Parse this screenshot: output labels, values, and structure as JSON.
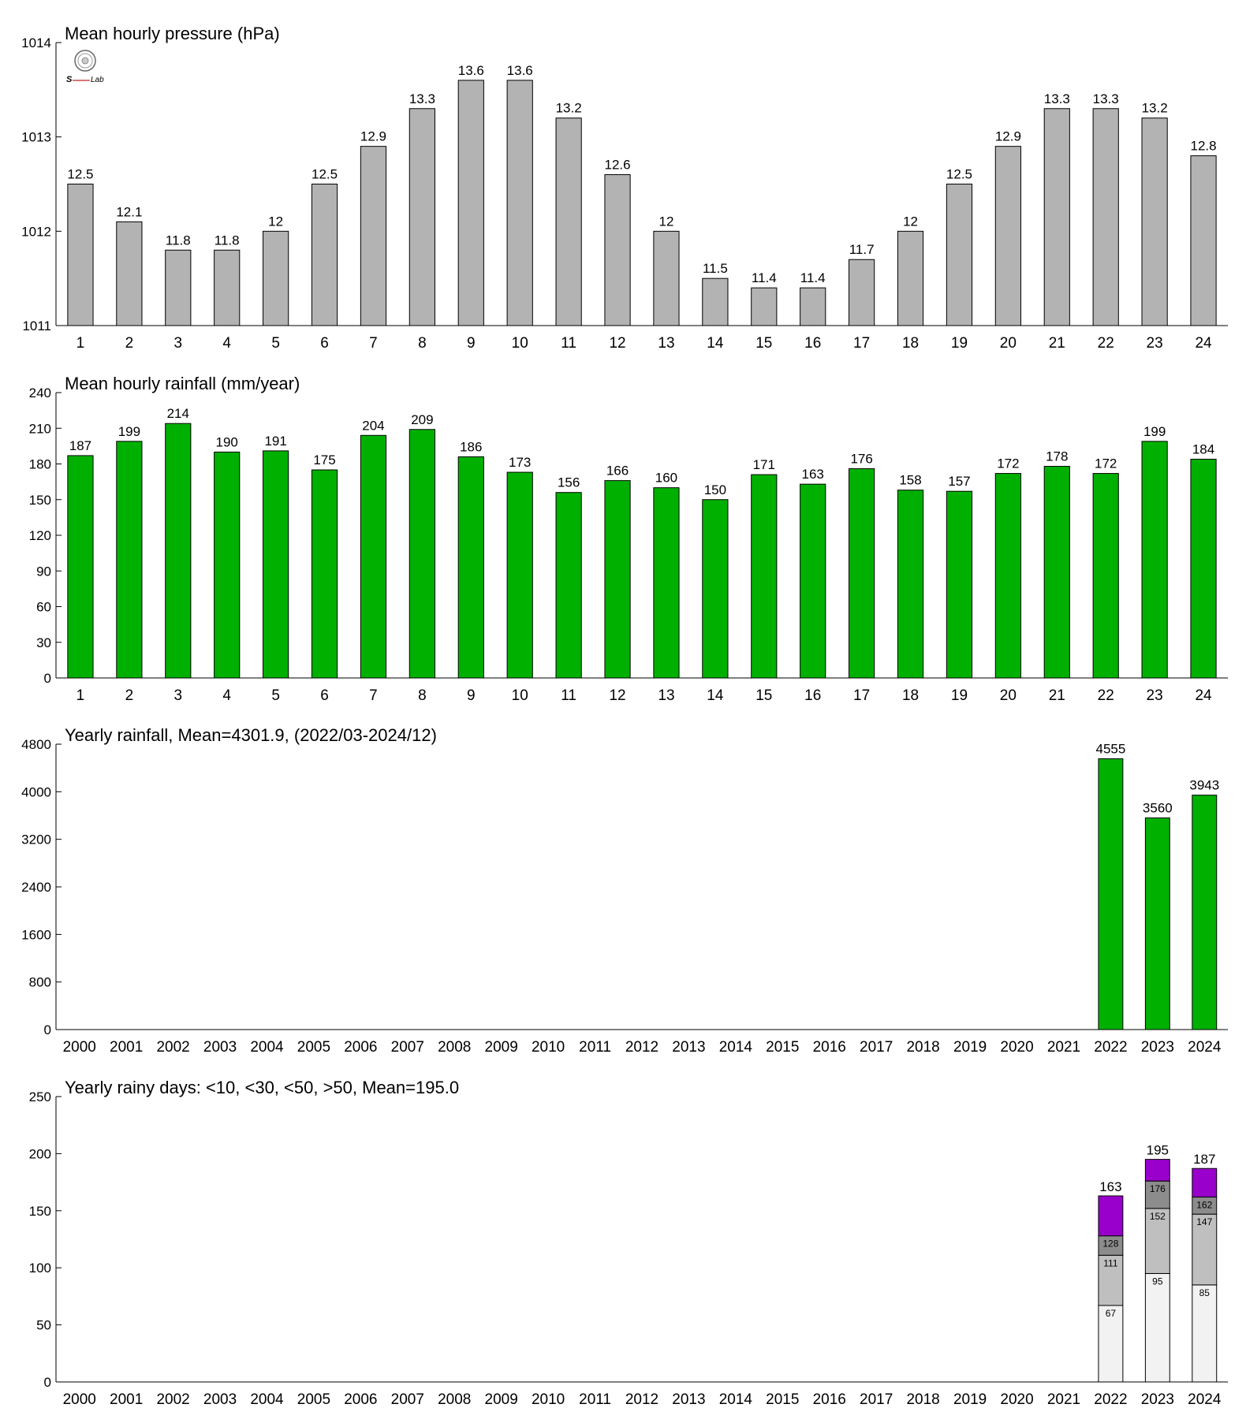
{
  "colors": {
    "pressure_bar": "#b3b3b3",
    "hourly_rain_bar": "#00b000",
    "yearly_rain_bar": "#00b000",
    "days_lt10": "#f2f2f2",
    "days_lt30": "#bfbfbf",
    "days_lt50": "#8c8c8c",
    "days_gt50": "#9900cc",
    "logo_blue": "#1f4fbf",
    "logo_green": "#2aa02a",
    "logo_red": "#cc2222"
  },
  "logo": {
    "icon": "lab-emblem-icon",
    "text_left": "S",
    "text_right": "Lab"
  },
  "chart_data": [
    {
      "type": "bar",
      "title": "Mean hourly pressure (hPa)",
      "categories": [
        "1",
        "2",
        "3",
        "4",
        "5",
        "6",
        "7",
        "8",
        "9",
        "10",
        "11",
        "12",
        "13",
        "14",
        "15",
        "16",
        "17",
        "18",
        "19",
        "20",
        "21",
        "22",
        "23",
        "24"
      ],
      "values": [
        1012.5,
        1012.1,
        1011.8,
        1011.8,
        1012.0,
        1012.5,
        1012.9,
        1013.3,
        1013.6,
        1013.6,
        1013.2,
        1012.6,
        1012.0,
        1011.5,
        1011.4,
        1011.4,
        1011.7,
        1012.0,
        1012.5,
        1012.9,
        1013.3,
        1013.3,
        1013.2,
        1012.8
      ],
      "labels": [
        "12.5",
        "12.1",
        "11.8",
        "11.8",
        "12",
        "12.5",
        "12.9",
        "13.3",
        "13.6",
        "13.6",
        "13.2",
        "12.6",
        "12",
        "11.5",
        "11.4",
        "11.4",
        "11.7",
        "12",
        "12.5",
        "12.9",
        "13.3",
        "13.3",
        "13.2",
        "12.8"
      ],
      "ylim": [
        1011,
        1014
      ],
      "yticks": [
        1011,
        1012,
        1013,
        1014
      ],
      "grid": false
    },
    {
      "type": "bar",
      "title": "Mean hourly rainfall (mm/year)",
      "categories": [
        "1",
        "2",
        "3",
        "4",
        "5",
        "6",
        "7",
        "8",
        "9",
        "10",
        "11",
        "12",
        "13",
        "14",
        "15",
        "16",
        "17",
        "18",
        "19",
        "20",
        "21",
        "22",
        "23",
        "24"
      ],
      "values": [
        187,
        199,
        214,
        190,
        191,
        175,
        204,
        209,
        186,
        173,
        156,
        166,
        160,
        150,
        171,
        163,
        176,
        158,
        157,
        172,
        178,
        172,
        199,
        184
      ],
      "labels": [
        "187",
        "199",
        "214",
        "190",
        "191",
        "175",
        "204",
        "209",
        "186",
        "173",
        "156",
        "166",
        "160",
        "150",
        "171",
        "163",
        "176",
        "158",
        "157",
        "172",
        "178",
        "172",
        "199",
        "184"
      ],
      "ylim": [
        0,
        240
      ],
      "yticks": [
        0,
        30,
        60,
        90,
        120,
        150,
        180,
        210,
        240
      ],
      "grid": false
    },
    {
      "type": "bar",
      "title": "Yearly rainfall, Mean=4301.9, (2022/03-2024/12)",
      "categories": [
        "2000",
        "2001",
        "2002",
        "2003",
        "2004",
        "2005",
        "2006",
        "2007",
        "2008",
        "2009",
        "2010",
        "2011",
        "2012",
        "2013",
        "2014",
        "2015",
        "2016",
        "2017",
        "2018",
        "2019",
        "2020",
        "2021",
        "2022",
        "2023",
        "2024"
      ],
      "values": [
        null,
        null,
        null,
        null,
        null,
        null,
        null,
        null,
        null,
        null,
        null,
        null,
        null,
        null,
        null,
        null,
        null,
        null,
        null,
        null,
        null,
        null,
        4555,
        3560,
        3943
      ],
      "labels": [
        "",
        "",
        "",
        "",
        "",
        "",
        "",
        "",
        "",
        "",
        "",
        "",
        "",
        "",
        "",
        "",
        "",
        "",
        "",
        "",
        "",
        "",
        "4555",
        "3560",
        "3943"
      ],
      "ylim": [
        0,
        4800
      ],
      "yticks": [
        0,
        800,
        1600,
        2400,
        3200,
        4000,
        4800
      ],
      "grid": false
    },
    {
      "type": "bar",
      "stacked": true,
      "title": "Yearly rainy days: <10, <30, <50, >50, Mean=195.0",
      "categories": [
        "2000",
        "2001",
        "2002",
        "2003",
        "2004",
        "2005",
        "2006",
        "2007",
        "2008",
        "2009",
        "2010",
        "2011",
        "2012",
        "2013",
        "2014",
        "2015",
        "2016",
        "2017",
        "2018",
        "2019",
        "2020",
        "2021",
        "2022",
        "2023",
        "2024"
      ],
      "cumulative": {
        "2022": [
          67,
          111,
          128,
          163
        ],
        "2023": [
          95,
          152,
          176,
          195
        ],
        "2024": [
          85,
          147,
          162,
          187
        ]
      },
      "segment_labels": {
        "2022": [
          "67",
          "111",
          "128",
          "163"
        ],
        "2023": [
          "95",
          "152",
          "176",
          "195"
        ],
        "2024": [
          "85",
          "147",
          "162",
          "187"
        ]
      },
      "ylim": [
        0,
        250
      ],
      "yticks": [
        0,
        50,
        100,
        150,
        200,
        250
      ],
      "grid": false
    }
  ]
}
